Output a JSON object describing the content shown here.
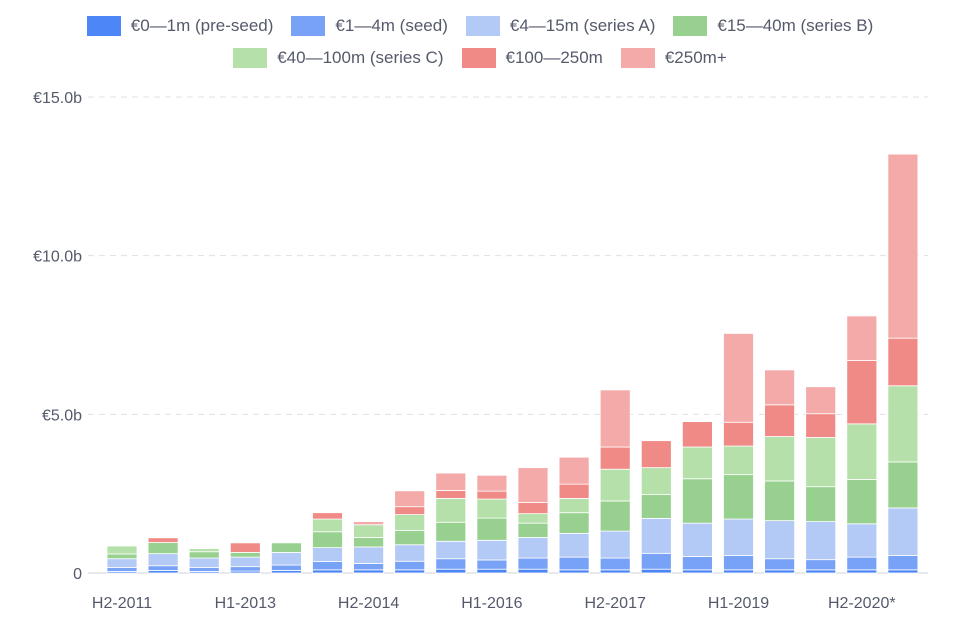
{
  "chart_data": {
    "type": "bar",
    "stacked": true,
    "categories": [
      "H2-2011",
      "H1-2012",
      "H2-2012",
      "H1-2013",
      "H2-2013",
      "H1-2014",
      "H2-2014",
      "H1-2015",
      "H2-2015",
      "H1-2016",
      "H2-2016",
      "H1-2017",
      "H2-2017",
      "H1-2018",
      "H2-2018",
      "H1-2019",
      "H2-2019",
      "H1-2020",
      "H2-2020*",
      "H1-2021"
    ],
    "x_tick_labels": [
      "H2-2011",
      "H1-2013",
      "H2-2014",
      "H1-2016",
      "H2-2017",
      "H1-2019",
      "H2-2020*"
    ],
    "y_tick_labels": [
      "€15.0b",
      "€10.0b",
      "€5.0b",
      "0"
    ],
    "ylim": [
      0,
      15
    ],
    "y_ticks": [
      0,
      5,
      10,
      15
    ],
    "unit": "€ billions",
    "grid": "horizontal dashed",
    "legend_position": "top",
    "series": [
      {
        "name": "€0—1m (pre-seed)",
        "color": "#4d86f7",
        "values": [
          0.05,
          0.08,
          0.05,
          0.06,
          0.08,
          0.1,
          0.1,
          0.1,
          0.12,
          0.12,
          0.12,
          0.1,
          0.1,
          0.12,
          0.1,
          0.1,
          0.1,
          0.1,
          0.1,
          0.1
        ]
      },
      {
        "name": "€1—4m (seed)",
        "color": "#78a2f5",
        "values": [
          0.12,
          0.15,
          0.12,
          0.14,
          0.17,
          0.26,
          0.2,
          0.27,
          0.33,
          0.29,
          0.35,
          0.4,
          0.37,
          0.5,
          0.42,
          0.45,
          0.35,
          0.32,
          0.4,
          0.45
        ]
      },
      {
        "name": "€4—15m (series A)",
        "color": "#b3c9f6",
        "values": [
          0.28,
          0.38,
          0.3,
          0.3,
          0.4,
          0.44,
          0.52,
          0.52,
          0.55,
          0.62,
          0.65,
          0.75,
          0.85,
          1.1,
          1.05,
          1.15,
          1.2,
          1.2,
          1.05,
          1.5
        ]
      },
      {
        "name": "€15—40m (series B)",
        "color": "#98d08f",
        "values": [
          0.15,
          0.35,
          0.2,
          0.15,
          0.3,
          0.5,
          0.3,
          0.45,
          0.6,
          0.7,
          0.45,
          0.65,
          0.95,
          0.75,
          1.4,
          1.4,
          1.25,
          1.1,
          1.4,
          1.45
        ]
      },
      {
        "name": "€40—100m (series C)",
        "color": "#b5e0aa",
        "values": [
          0.25,
          0.0,
          0.1,
          0.0,
          0.0,
          0.4,
          0.4,
          0.5,
          0.75,
          0.6,
          0.3,
          0.45,
          1.0,
          0.85,
          1.0,
          0.9,
          1.4,
          1.55,
          1.75,
          2.4
        ]
      },
      {
        "name": "€100—250m",
        "color": "#f08a86",
        "values": [
          0.0,
          0.15,
          0.0,
          0.3,
          0.0,
          0.2,
          0.0,
          0.25,
          0.25,
          0.25,
          0.35,
          0.45,
          0.7,
          0.85,
          0.8,
          0.75,
          1.0,
          0.75,
          2.0,
          1.5
        ]
      },
      {
        "name": "€250m+",
        "color": "#f4aaa8",
        "values": [
          0.0,
          0.0,
          0.0,
          0.0,
          0.0,
          0.0,
          0.1,
          0.5,
          0.55,
          0.5,
          1.1,
          0.85,
          1.8,
          0.0,
          0.0,
          2.8,
          1.1,
          0.85,
          1.4,
          5.8
        ]
      }
    ]
  }
}
